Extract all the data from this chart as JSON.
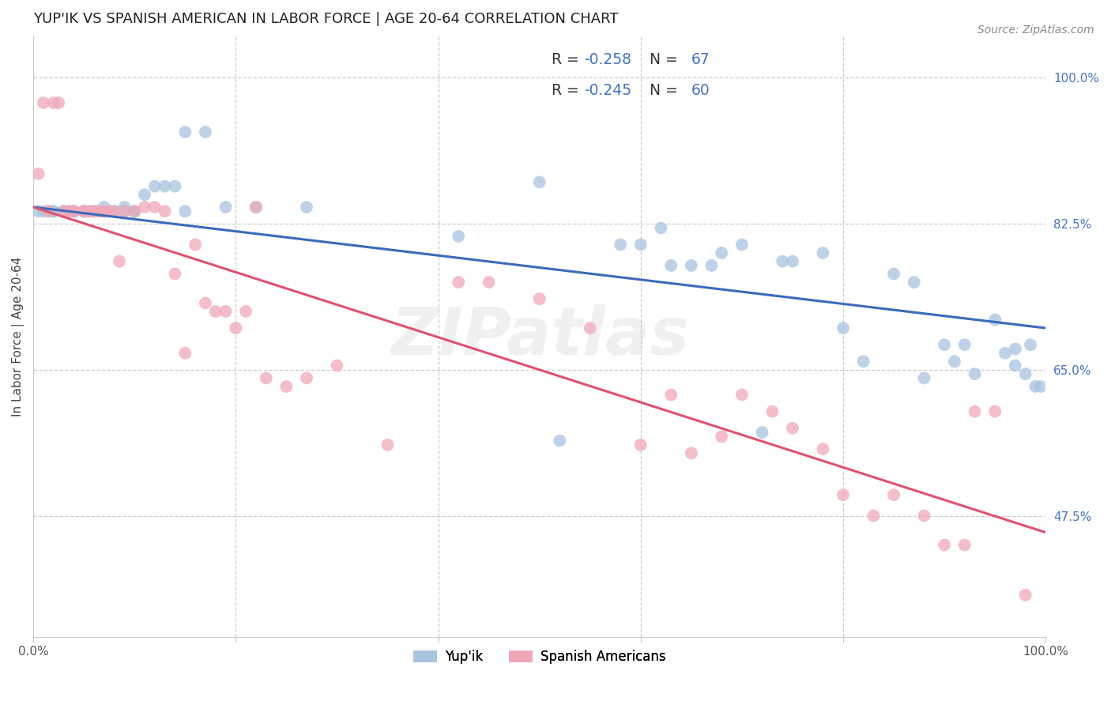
{
  "title": "YUP'IK VS SPANISH AMERICAN IN LABOR FORCE | AGE 20-64 CORRELATION CHART",
  "source": "Source: ZipAtlas.com",
  "ylabel": "In Labor Force | Age 20-64",
  "xlim": [
    0.0,
    1.0
  ],
  "ylim": [
    0.33,
    1.05
  ],
  "x_ticks": [
    0.0,
    0.2,
    0.4,
    0.6,
    0.8,
    1.0
  ],
  "x_tick_labels": [
    "0.0%",
    "",
    "",
    "",
    "",
    "100.0%"
  ],
  "y_tick_labels_right": [
    "100.0%",
    "82.5%",
    "65.0%",
    "47.5%"
  ],
  "y_tick_positions_right": [
    1.0,
    0.825,
    0.65,
    0.475
  ],
  "watermark": "ZIPatlas",
  "blue_R": "-0.258",
  "blue_N": "67",
  "pink_R": "-0.245",
  "pink_N": "60",
  "blue_color": "#a8c4e0",
  "pink_color": "#f0a8b8",
  "blue_line_color": "#3a6bba",
  "pink_line_color": "#e05070",
  "legend_label_blue": "Yup'ik",
  "legend_label_pink": "Spanish Americans",
  "blue_scatter_x": [
    0.005,
    0.01,
    0.015,
    0.02,
    0.02,
    0.03,
    0.03,
    0.035,
    0.04,
    0.04,
    0.05,
    0.05,
    0.055,
    0.06,
    0.06,
    0.065,
    0.07,
    0.07,
    0.075,
    0.08,
    0.08,
    0.09,
    0.09,
    0.1,
    0.1,
    0.11,
    0.12,
    0.13,
    0.14,
    0.15,
    0.15,
    0.17,
    0.19,
    0.22,
    0.27,
    0.42,
    0.5,
    0.52,
    0.58,
    0.6,
    0.62,
    0.63,
    0.65,
    0.67,
    0.68,
    0.7,
    0.72,
    0.74,
    0.75,
    0.78,
    0.8,
    0.82,
    0.85,
    0.87,
    0.88,
    0.9,
    0.91,
    0.92,
    0.93,
    0.95,
    0.96,
    0.97,
    0.97,
    0.98,
    0.985,
    0.99,
    0.995
  ],
  "blue_scatter_y": [
    0.84,
    0.84,
    0.84,
    0.84,
    0.84,
    0.84,
    0.84,
    0.84,
    0.84,
    0.84,
    0.84,
    0.84,
    0.84,
    0.84,
    0.84,
    0.84,
    0.84,
    0.845,
    0.84,
    0.84,
    0.84,
    0.84,
    0.845,
    0.84,
    0.84,
    0.86,
    0.87,
    0.87,
    0.87,
    0.84,
    0.935,
    0.935,
    0.845,
    0.845,
    0.845,
    0.81,
    0.875,
    0.565,
    0.8,
    0.8,
    0.82,
    0.775,
    0.775,
    0.775,
    0.79,
    0.8,
    0.575,
    0.78,
    0.78,
    0.79,
    0.7,
    0.66,
    0.765,
    0.755,
    0.64,
    0.68,
    0.66,
    0.68,
    0.645,
    0.71,
    0.67,
    0.675,
    0.655,
    0.645,
    0.68,
    0.63,
    0.63
  ],
  "pink_scatter_x": [
    0.005,
    0.01,
    0.015,
    0.02,
    0.025,
    0.03,
    0.035,
    0.04,
    0.04,
    0.05,
    0.05,
    0.055,
    0.06,
    0.06,
    0.065,
    0.07,
    0.07,
    0.075,
    0.08,
    0.085,
    0.09,
    0.1,
    0.11,
    0.12,
    0.13,
    0.14,
    0.15,
    0.16,
    0.17,
    0.18,
    0.19,
    0.2,
    0.21,
    0.22,
    0.23,
    0.25,
    0.27,
    0.3,
    0.35,
    0.42,
    0.45,
    0.5,
    0.55,
    0.6,
    0.63,
    0.65,
    0.68,
    0.7,
    0.73,
    0.75,
    0.78,
    0.8,
    0.83,
    0.85,
    0.88,
    0.9,
    0.92,
    0.93,
    0.95,
    0.98
  ],
  "pink_scatter_y": [
    0.885,
    0.97,
    0.84,
    0.97,
    0.97,
    0.84,
    0.84,
    0.84,
    0.84,
    0.84,
    0.84,
    0.84,
    0.84,
    0.84,
    0.84,
    0.84,
    0.84,
    0.84,
    0.84,
    0.78,
    0.84,
    0.84,
    0.845,
    0.845,
    0.84,
    0.765,
    0.67,
    0.8,
    0.73,
    0.72,
    0.72,
    0.7,
    0.72,
    0.845,
    0.64,
    0.63,
    0.64,
    0.655,
    0.56,
    0.755,
    0.755,
    0.735,
    0.7,
    0.56,
    0.62,
    0.55,
    0.57,
    0.62,
    0.6,
    0.58,
    0.555,
    0.5,
    0.475,
    0.5,
    0.475,
    0.44,
    0.44,
    0.6,
    0.6,
    0.38
  ],
  "blue_line_start_y": 0.845,
  "blue_line_end_y": 0.7,
  "pink_line_start_y": 0.845,
  "pink_line_end_y": 0.455,
  "background_color": "#ffffff",
  "grid_color": "#cccccc"
}
